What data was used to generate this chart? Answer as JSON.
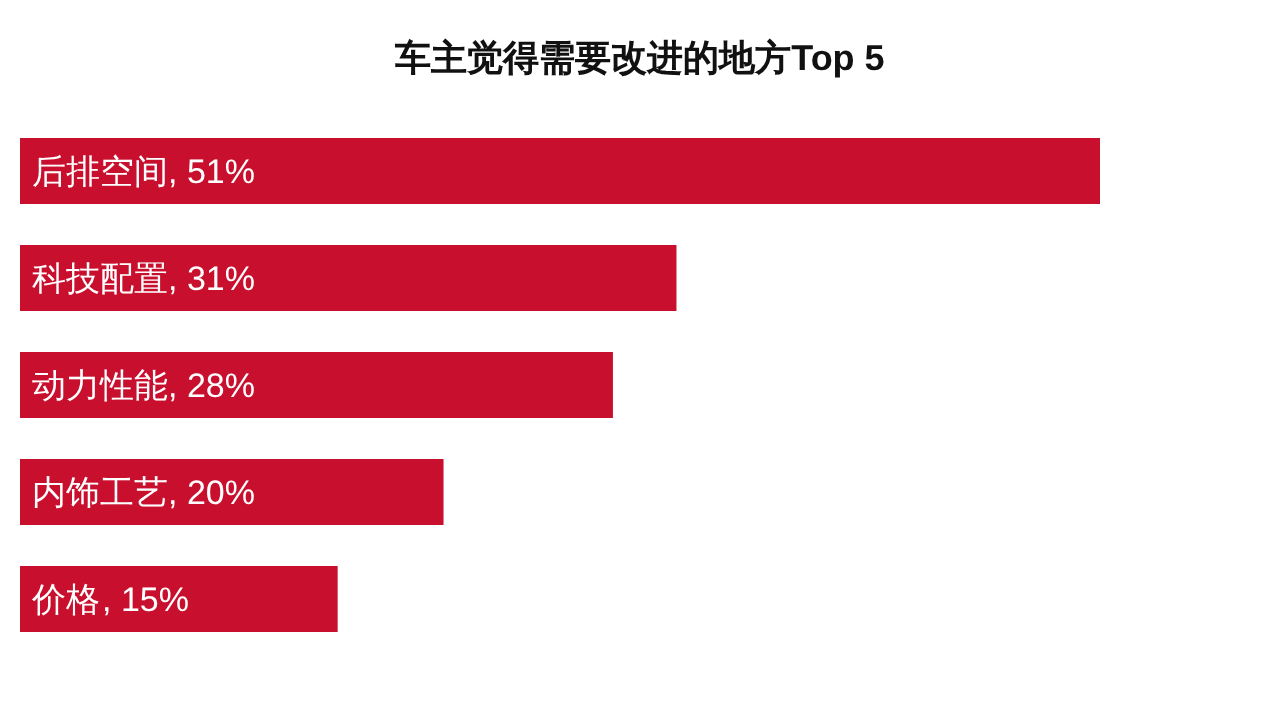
{
  "chart_data": {
    "type": "bar",
    "orientation": "horizontal",
    "title": "车主觉得需要改进的地方Top 5",
    "categories": [
      "后排空间",
      "科技配置",
      "动力性能",
      "内饰工艺",
      "价格"
    ],
    "values": [
      51,
      31,
      28,
      20,
      15
    ],
    "value_labels": [
      ", 51%",
      ", 31%",
      ", 28%",
      ", 20%",
      ", 15%"
    ],
    "color": "#c8102e"
  }
}
